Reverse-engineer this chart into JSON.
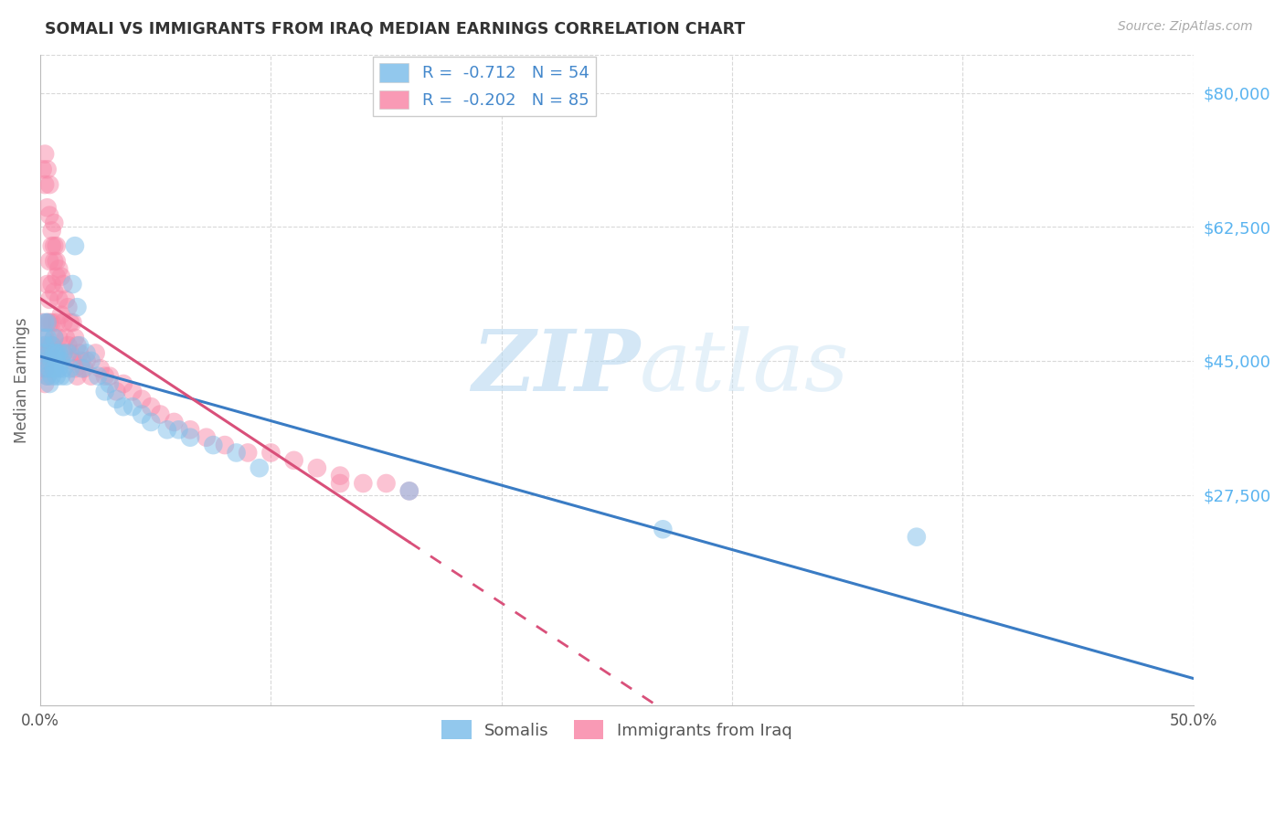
{
  "title": "SOMALI VS IMMIGRANTS FROM IRAQ MEDIAN EARNINGS CORRELATION CHART",
  "source": "Source: ZipAtlas.com",
  "ylabel": "Median Earnings",
  "ytick_labels": [
    "$27,500",
    "$45,000",
    "$62,500",
    "$80,000"
  ],
  "ytick_values": [
    27500,
    45000,
    62500,
    80000
  ],
  "ymin": 0,
  "ymax": 85000,
  "xmin": 0.0,
  "xmax": 0.5,
  "watermark_zip": "ZIP",
  "watermark_atlas": "atlas",
  "legend_label_somali": "Somalis",
  "legend_label_iraq": "Immigrants from Iraq",
  "somali_color": "#7fbfea",
  "iraq_color": "#f888a8",
  "somali_line_color": "#3a7cc4",
  "iraq_line_color": "#d9507a",
  "background_color": "#ffffff",
  "ytick_color": "#5ab4f0",
  "grid_color": "#d8d8d8",
  "somali_R": "-0.712",
  "somali_N": "54",
  "iraq_R": "-0.202",
  "iraq_N": "85",
  "somali_scatter_x": [
    0.001,
    0.001,
    0.002,
    0.002,
    0.002,
    0.003,
    0.003,
    0.003,
    0.003,
    0.004,
    0.004,
    0.004,
    0.005,
    0.005,
    0.005,
    0.006,
    0.006,
    0.006,
    0.007,
    0.007,
    0.007,
    0.008,
    0.008,
    0.009,
    0.009,
    0.01,
    0.01,
    0.011,
    0.012,
    0.013,
    0.014,
    0.015,
    0.016,
    0.017,
    0.018,
    0.02,
    0.022,
    0.025,
    0.028,
    0.03,
    0.033,
    0.036,
    0.04,
    0.044,
    0.048,
    0.055,
    0.06,
    0.065,
    0.075,
    0.085,
    0.095,
    0.16,
    0.27,
    0.38
  ],
  "somali_scatter_y": [
    46000,
    48000,
    47000,
    44000,
    50000,
    48000,
    45000,
    43000,
    50000,
    46000,
    44000,
    42000,
    47000,
    45000,
    43000,
    46000,
    48000,
    44000,
    45000,
    43000,
    46000,
    44000,
    46000,
    43000,
    45000,
    44000,
    46000,
    43000,
    46000,
    44000,
    55000,
    60000,
    52000,
    47000,
    44000,
    46000,
    45000,
    43000,
    41000,
    42000,
    40000,
    39000,
    39000,
    38000,
    37000,
    36000,
    36000,
    35000,
    34000,
    33000,
    31000,
    28000,
    23000,
    22000
  ],
  "iraq_scatter_x": [
    0.001,
    0.001,
    0.001,
    0.002,
    0.002,
    0.002,
    0.002,
    0.003,
    0.003,
    0.003,
    0.003,
    0.003,
    0.004,
    0.004,
    0.004,
    0.004,
    0.005,
    0.005,
    0.005,
    0.005,
    0.006,
    0.006,
    0.006,
    0.006,
    0.007,
    0.007,
    0.007,
    0.008,
    0.008,
    0.008,
    0.009,
    0.009,
    0.01,
    0.01,
    0.01,
    0.011,
    0.011,
    0.012,
    0.012,
    0.013,
    0.013,
    0.014,
    0.014,
    0.015,
    0.015,
    0.016,
    0.016,
    0.017,
    0.018,
    0.019,
    0.02,
    0.022,
    0.024,
    0.026,
    0.028,
    0.03,
    0.033,
    0.036,
    0.04,
    0.044,
    0.048,
    0.052,
    0.058,
    0.065,
    0.072,
    0.08,
    0.09,
    0.1,
    0.11,
    0.12,
    0.13,
    0.14,
    0.15,
    0.001,
    0.002,
    0.002,
    0.003,
    0.003,
    0.004,
    0.004,
    0.005,
    0.006,
    0.007,
    0.13,
    0.16
  ],
  "iraq_scatter_y": [
    46000,
    44000,
    50000,
    47000,
    48000,
    44000,
    42000,
    55000,
    50000,
    46000,
    45000,
    43000,
    58000,
    53000,
    50000,
    47000,
    60000,
    55000,
    50000,
    47000,
    63000,
    58000,
    54000,
    48000,
    60000,
    56000,
    50000,
    57000,
    53000,
    48000,
    56000,
    51000,
    55000,
    50000,
    46000,
    53000,
    48000,
    52000,
    47000,
    50000,
    46000,
    50000,
    45000,
    48000,
    44000,
    47000,
    43000,
    46000,
    45000,
    44000,
    45000,
    43000,
    46000,
    44000,
    43000,
    43000,
    41000,
    42000,
    41000,
    40000,
    39000,
    38000,
    37000,
    36000,
    35000,
    34000,
    33000,
    33000,
    32000,
    31000,
    30000,
    29000,
    29000,
    70000,
    68000,
    72000,
    65000,
    70000,
    64000,
    68000,
    62000,
    60000,
    58000,
    29000,
    28000
  ]
}
